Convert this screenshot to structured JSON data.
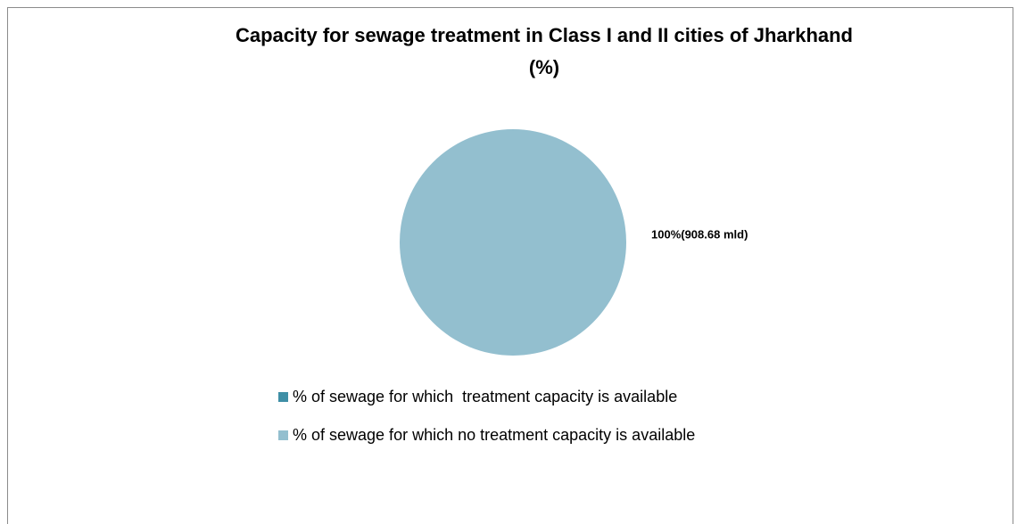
{
  "chart_data": {
    "type": "pie",
    "title": "Capacity for sewage treatment in Class I and II cities of Jharkhand\n(%)",
    "categories": [
      "% of sewage for which  treatment capacity is available",
      "% of sewage for which no treatment capacity is available"
    ],
    "values": [
      0,
      100
    ],
    "value_labels": [
      null,
      "100%(908.68 mld)"
    ],
    "colors": [
      "#3f8fa6",
      "#93bfcf"
    ],
    "legend": "bottom"
  }
}
